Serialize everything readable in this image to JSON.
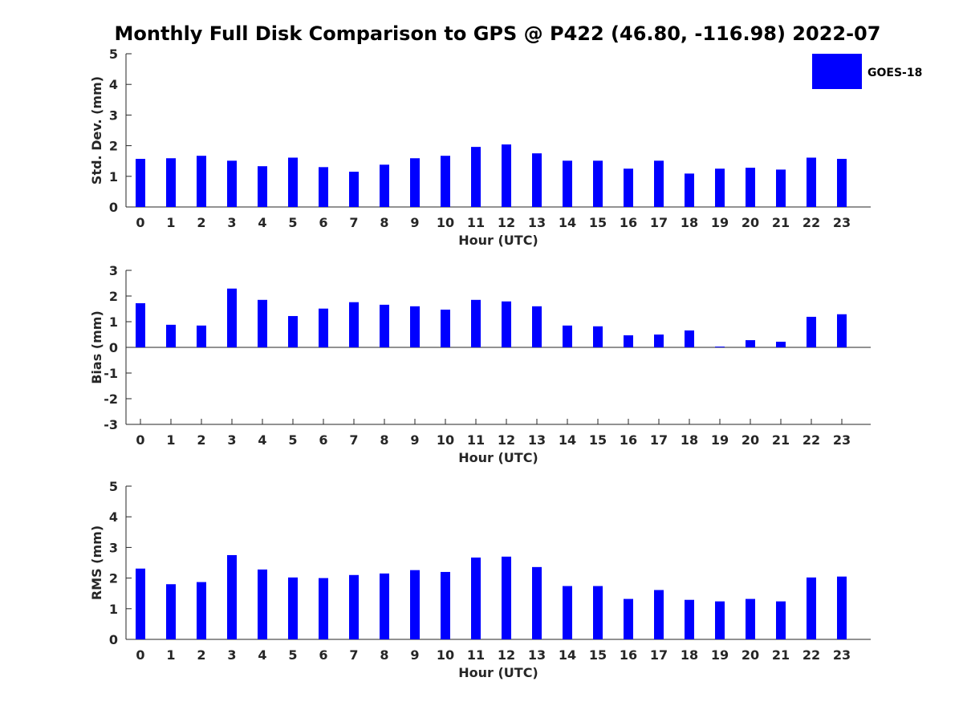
{
  "chart_data": {
    "type": "bar",
    "title": "Monthly Full Disk Comparison to GPS @ P422 (46.80, -116.98) 2022-07",
    "legend": {
      "label": "GOES-18",
      "placement": "top-right",
      "color": "#0000ff"
    },
    "bar_color": "#0000ff",
    "categories": [
      "0",
      "1",
      "2",
      "3",
      "4",
      "5",
      "6",
      "7",
      "8",
      "9",
      "10",
      "11",
      "12",
      "13",
      "14",
      "15",
      "16",
      "17",
      "18",
      "19",
      "20",
      "21",
      "22",
      "23"
    ],
    "panels": [
      {
        "name": "std",
        "ylabel": "Std. Dev. (mm)",
        "xlabel": "Hour (UTC)",
        "ylim": [
          0,
          5
        ],
        "yticks": [
          "0",
          "1",
          "2",
          "3",
          "4",
          "5"
        ],
        "values": [
          1.57,
          1.59,
          1.67,
          1.51,
          1.33,
          1.61,
          1.3,
          1.15,
          1.38,
          1.59,
          1.67,
          1.96,
          2.04,
          1.75,
          1.51,
          1.51,
          1.25,
          1.51,
          1.09,
          1.25,
          1.28,
          1.22,
          1.61,
          1.57
        ]
      },
      {
        "name": "bias",
        "ylabel": "Bias (mm)",
        "xlabel": "Hour (UTC)",
        "ylim": [
          -3,
          3
        ],
        "yticks": [
          "-3",
          "-2",
          "-1",
          "0",
          "1",
          "2",
          "3"
        ],
        "values": [
          1.72,
          0.88,
          0.85,
          2.29,
          1.85,
          1.22,
          1.51,
          1.76,
          1.66,
          1.6,
          1.47,
          1.85,
          1.79,
          1.6,
          0.85,
          0.82,
          0.47,
          0.5,
          0.66,
          0.03,
          0.28,
          0.22,
          1.19,
          1.29
        ]
      },
      {
        "name": "rms",
        "ylabel": "RMS (mm)",
        "xlabel": "Hour (UTC)",
        "ylim": [
          0,
          5
        ],
        "yticks": [
          "0",
          "1",
          "2",
          "3",
          "4",
          "5"
        ],
        "values": [
          2.31,
          1.8,
          1.87,
          2.75,
          2.28,
          2.02,
          2.0,
          2.1,
          2.15,
          2.26,
          2.2,
          2.67,
          2.7,
          2.36,
          1.74,
          1.74,
          1.32,
          1.61,
          1.29,
          1.24,
          1.32,
          1.24,
          2.02,
          2.05
        ]
      }
    ]
  }
}
